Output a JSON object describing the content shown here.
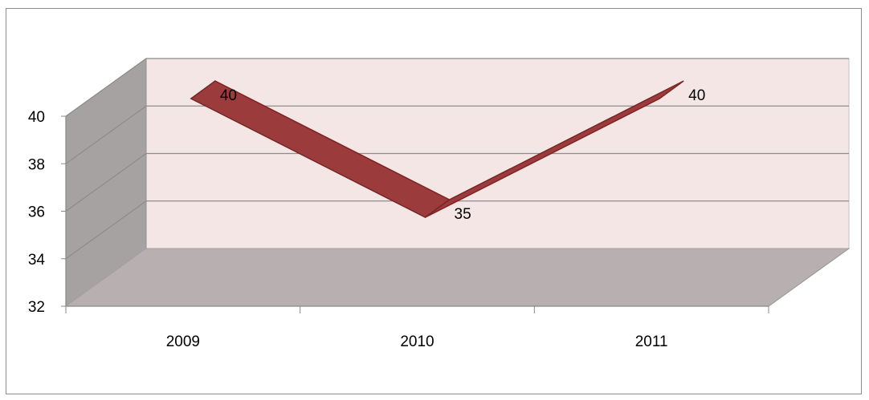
{
  "chart_data": {
    "type": "line",
    "style": "3d-ribbon",
    "categories": [
      "2009",
      "2010",
      "2011"
    ],
    "series": [
      {
        "values": [
          40,
          35,
          40
        ]
      }
    ],
    "data_labels": [
      "40",
      "35",
      "40"
    ],
    "ylim": [
      32,
      40
    ],
    "yticks": [
      "32",
      "34",
      "36",
      "38",
      "40"
    ],
    "title": "",
    "xlabel": "",
    "ylabel": "",
    "grid": true,
    "legend": "none",
    "colors": {
      "ribbon": "#9b3b3b",
      "ribbon_edge": "#7a2424",
      "back_wall": "#f5e6e6",
      "side_wall": "#a6a2a2",
      "floor": "#b8b0b0",
      "gridline": "#8c8c8c"
    }
  }
}
